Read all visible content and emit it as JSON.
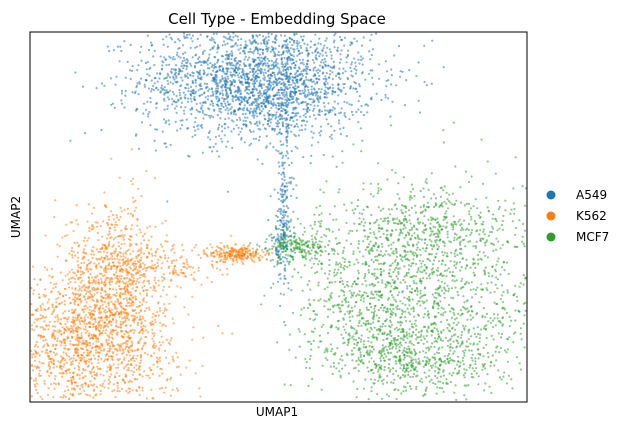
{
  "chart_data": {
    "type": "scatter",
    "title": "Cell Type - Embedding Space",
    "xlabel": "UMAP1",
    "ylabel": "UMAP2",
    "xticks": [],
    "yticks": [],
    "grid": false,
    "legend_position": "right",
    "series": [
      {
        "name": "A549",
        "color": "#1f77b4",
        "clusters": [
          {
            "cx": -1.3,
            "cy": 3.1,
            "sx": 1.1,
            "sy": 0.55,
            "w": 0.85
          },
          {
            "cx": -0.9,
            "cy": 2.6,
            "sx": 0.35,
            "sy": 0.3,
            "w": 0.05
          },
          {
            "cx": -0.8,
            "cy": 0.7,
            "sx": 0.08,
            "sy": 0.9,
            "w": 0.07
          },
          {
            "cx": -0.85,
            "cy": 0.0,
            "sx": 0.12,
            "sy": 0.25,
            "w": 0.03
          }
        ]
      },
      {
        "name": "K562",
        "color": "#ff7f0e",
        "clusters": [
          {
            "cx": -4.55,
            "cy": -1.95,
            "sx": 0.85,
            "sy": 0.7,
            "w": 0.55
          },
          {
            "cx": -4.0,
            "cy": -0.7,
            "sx": 0.45,
            "sy": 0.75,
            "w": 0.3
          },
          {
            "cx": -3.0,
            "cy": -0.4,
            "sx": 0.6,
            "sy": 0.25,
            "w": 0.06
          },
          {
            "cx": -1.7,
            "cy": -0.2,
            "sx": 0.25,
            "sy": 0.08,
            "w": 0.09
          }
        ]
      },
      {
        "name": "MCF7",
        "color": "#2ca02c",
        "clusters": [
          {
            "cx": 2.2,
            "cy": -0.8,
            "sx": 1.15,
            "sy": 1.05,
            "w": 0.45
          },
          {
            "cx": 0.8,
            "cy": -1.2,
            "sx": 0.65,
            "sy": 0.75,
            "w": 0.22
          },
          {
            "cx": 1.8,
            "cy": 0.35,
            "sx": 0.7,
            "sy": 0.35,
            "w": 0.1
          },
          {
            "cx": -0.5,
            "cy": -0.05,
            "sx": 0.35,
            "sy": 0.15,
            "w": 0.08
          },
          {
            "cx": 1.8,
            "cy": -2.2,
            "sx": 0.8,
            "sy": 0.3,
            "w": 0.15
          }
        ]
      }
    ],
    "xlim": [
      -5.6,
      3.8
    ],
    "ylim": [
      -3.0,
      4.0
    ]
  }
}
